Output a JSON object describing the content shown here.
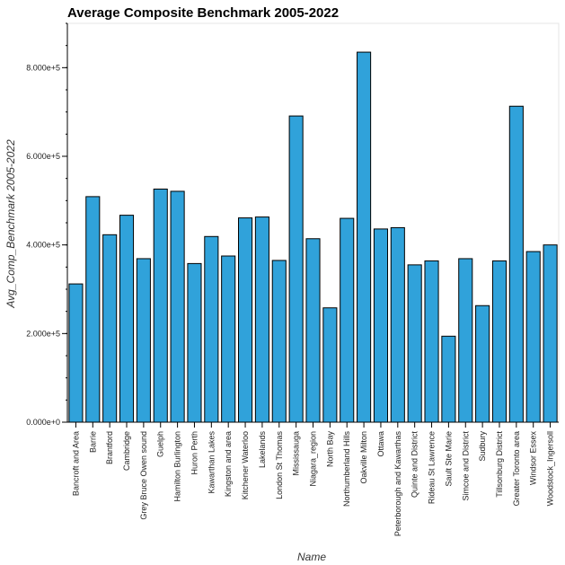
{
  "chart_data": {
    "type": "bar",
    "title": "Average Composite Benchmark 2005-2022",
    "xlabel": "Name",
    "ylabel": "Avg_Comp_Benchmark 2005-2022",
    "ylim": [
      0,
      900000
    ],
    "yticks": [
      0,
      200000,
      400000,
      600000,
      800000
    ],
    "ytick_labels": [
      "0.000e+0",
      "2.000e+5",
      "4.000e+5",
      "6.000e+5",
      "8.000e+5"
    ],
    "grid": false,
    "bar_color": "#30a2da",
    "categories": [
      "Bancroft and Area",
      "Barrie",
      "Brantford",
      "Cambridge",
      "Grey Bruce Owen sound",
      "Guelph",
      "Hamilton Burlington",
      "Huron Perth",
      "Kawarthan Lakes",
      "Kingston and area",
      "Kitchener Waterloo",
      "Lakelands",
      "London St Thomas",
      "Mississauga",
      "Niagara_region",
      "North Bay",
      "Northumberland Hills",
      "Oakville Milton",
      "Ottawa",
      "Peterborough and Kawarthas",
      "Quinte and District",
      "Rideau St Lawrence",
      "Sault Ste Marie",
      "Simcoe and District",
      "Sudbury",
      "Tillsonburg District",
      "Greater Toronto area",
      "Windsor Essex",
      "Woodstock_Ingersoll"
    ],
    "values": [
      312000,
      509000,
      423000,
      467000,
      369000,
      526000,
      521000,
      358000,
      419000,
      375000,
      461000,
      463000,
      365000,
      691000,
      414000,
      258000,
      460000,
      835000,
      436000,
      439000,
      355000,
      364000,
      194000,
      369000,
      263000,
      364000,
      713000,
      385000,
      400000
    ]
  }
}
